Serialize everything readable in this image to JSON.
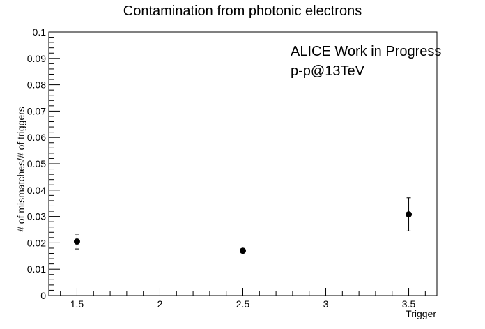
{
  "chart_data": {
    "type": "scatter",
    "title": "Contamination from photonic electrons",
    "xlabel": "Trigger",
    "ylabel": "# of mismatches/# of triggers",
    "xlim": [
      1.33,
      3.67
    ],
    "ylim": [
      0,
      0.1
    ],
    "xticks": [
      "1.5",
      "2",
      "2.5",
      "3",
      "3.5"
    ],
    "yticks": [
      "0",
      "0.01",
      "0.02",
      "0.03",
      "0.04",
      "0.05",
      "0.06",
      "0.07",
      "0.08",
      "0.09",
      "0.1"
    ],
    "annotations": [
      "ALICE Work in Progress",
      "p-p@13TeV"
    ],
    "series": [
      {
        "points": [
          {
            "x": 1.5,
            "y": 0.0205,
            "err": 0.0028
          },
          {
            "x": 2.5,
            "y": 0.017,
            "err": 0.0008
          },
          {
            "x": 3.5,
            "y": 0.0308,
            "err": 0.0063
          }
        ]
      }
    ]
  }
}
